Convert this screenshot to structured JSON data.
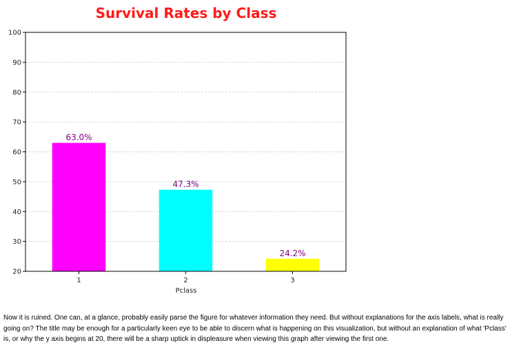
{
  "chart_data": {
    "type": "bar",
    "title": "Survival Rates by Class",
    "xlabel": "Pclass",
    "ylabel": "",
    "categories": [
      "1",
      "2",
      "3"
    ],
    "values": [
      63.0,
      47.3,
      24.2
    ],
    "value_labels": [
      "63.0%",
      "47.3%",
      "24.2%"
    ],
    "bar_colors": [
      "#ff00ff",
      "#00ffff",
      "#ffff00"
    ],
    "ylim": [
      20,
      100
    ],
    "yticks": [
      20,
      30,
      40,
      50,
      60,
      70,
      80,
      90,
      100
    ],
    "grid": "horizontal dashed",
    "title_color": "#ff1a1a",
    "data_label_color": "#800080"
  },
  "caption": "Now it is ruined. One can, at a glance, probably easily parse the figure for whatever information they need. But without explanations for the axis labels, what is really going on? The title may be enough for a particularly keen eye to be able to discern what is happening on this visualization, but without an explanation of what 'Pclass' is, or why the y axis begins at 20, there will be a sharp uptick in displeasure when viewing this graph after viewing the first one."
}
